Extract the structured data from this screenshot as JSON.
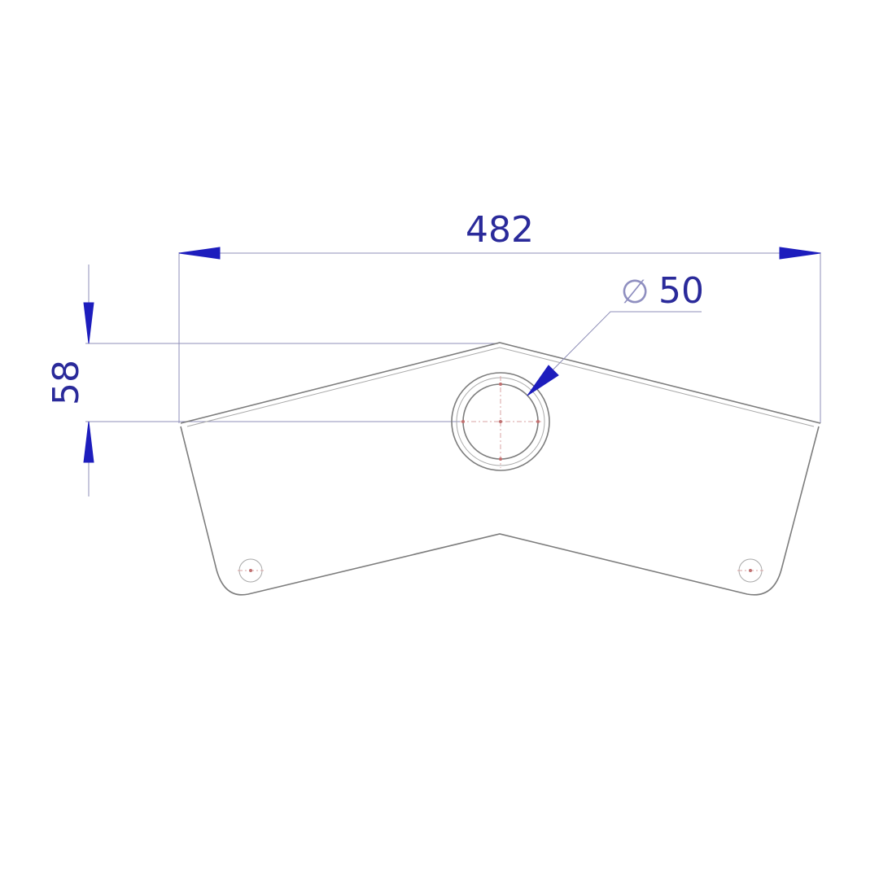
{
  "dimensions": {
    "width_label": "482",
    "height_label": "58",
    "hole_diameter_label": "50",
    "diameter_symbol": "∅"
  },
  "colors": {
    "dimension": "#2a2a9a",
    "arrow": "#1d1dbd",
    "outline": "#7d7d7d",
    "center_mark": "#c07070"
  }
}
